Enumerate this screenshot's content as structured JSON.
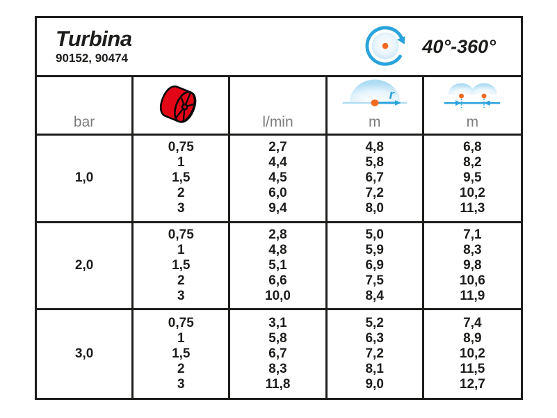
{
  "header": {
    "title": "Turbina",
    "product_codes": "90152, 90474",
    "rotation_range": "40°-360°"
  },
  "icons": {
    "rotation": "rotation-arrow-icon",
    "nozzle": "nozzle-icon",
    "radius": "throw-radius-icon",
    "spacing": "sprinkler-spacing-icon"
  },
  "columns": {
    "pressure_unit": "bar",
    "flow_unit": "l/min",
    "radius_unit": "m",
    "radius_icon_label": "r",
    "spacing_unit": "m"
  },
  "rows": [
    {
      "pressure": "1,0",
      "nozzles": [
        "0,75",
        "1",
        "1,5",
        "2",
        "3"
      ],
      "flow_lmin": [
        "2,7",
        "4,4",
        "4,5",
        "6,0",
        "9,4"
      ],
      "radius_m": [
        "4,8",
        "5,8",
        "6,7",
        "7,2",
        "8,0"
      ],
      "spacing_m": [
        "6,8",
        "8,2",
        "9,5",
        "10,2",
        "11,3"
      ]
    },
    {
      "pressure": "2,0",
      "nozzles": [
        "0,75",
        "1",
        "1,5",
        "2",
        "3"
      ],
      "flow_lmin": [
        "2,8",
        "4,8",
        "5,1",
        "6,6",
        "10,0"
      ],
      "radius_m": [
        "5,0",
        "5,9",
        "6,9",
        "7,5",
        "8,4"
      ],
      "spacing_m": [
        "7,1",
        "8,3",
        "9,8",
        "10,6",
        "11,9"
      ]
    },
    {
      "pressure": "3,0",
      "nozzles": [
        "0,75",
        "1",
        "1,5",
        "2",
        "3"
      ],
      "flow_lmin": [
        "3,1",
        "5,8",
        "6,7",
        "8,3",
        "11,8"
      ],
      "radius_m": [
        "5,2",
        "6,3",
        "7,2",
        "8,1",
        "9,0"
      ],
      "spacing_m": [
        "7,4",
        "8,9",
        "10,2",
        "11,5",
        "12,7"
      ]
    }
  ],
  "colors": {
    "accent_blue": "#29a3dc",
    "accent_orange": "#f26a21",
    "nozzle_red": "#e30617",
    "unit_gray": "#7d7d7d",
    "line_black": "#1d1d1b"
  }
}
